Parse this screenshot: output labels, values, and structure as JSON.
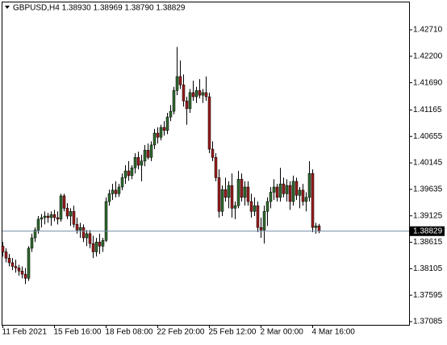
{
  "chart_data": {
    "type": "candlestick",
    "title": "GBPUSD,H4  1.38930 1.38969 1.38790 1.38829",
    "categories": [
      "11 Feb 2021",
      null,
      null,
      null,
      null,
      null,
      null,
      null,
      null,
      null,
      null,
      null,
      null,
      null,
      null,
      null,
      "15 Feb 16:00",
      null,
      null,
      null,
      null,
      null,
      null,
      null,
      null,
      null,
      null,
      null,
      null,
      null,
      null,
      null,
      "18 Feb 08:00",
      null,
      null,
      null,
      null,
      null,
      null,
      null,
      null,
      null,
      null,
      null,
      null,
      null,
      null,
      null,
      "22 Feb 20:00",
      null,
      null,
      null,
      null,
      null,
      null,
      null,
      null,
      null,
      null,
      null,
      null,
      null,
      null,
      null,
      "25 Feb 12:00",
      null,
      null,
      null,
      null,
      null,
      null,
      null,
      null,
      null,
      null,
      null,
      null,
      null,
      null,
      null,
      "2 Mar 00:00",
      null,
      null,
      null,
      null,
      null,
      null,
      null,
      null,
      null,
      null,
      null,
      null,
      null,
      null,
      null,
      "4 Mar 16:00",
      null,
      null
    ],
    "open": [
      1.3854,
      1.3843,
      1.3831,
      1.3822,
      1.3815,
      1.3812,
      1.3806,
      1.38,
      1.3792,
      1.385,
      1.387,
      1.3885,
      1.3906,
      1.3909,
      1.3912,
      1.3909,
      1.3915,
      1.3909,
      1.3906,
      1.3951,
      1.3927,
      1.3912,
      1.3921,
      1.3896,
      1.3885,
      1.389,
      1.387,
      1.3878,
      1.3859,
      1.3843,
      1.3862,
      1.3854,
      1.3865,
      1.394,
      1.3955,
      1.3962,
      1.3955,
      1.3968,
      1.3986,
      1.3999,
      1.399,
      1.4005,
      1.4025,
      1.401,
      1.4018,
      1.4039,
      1.4025,
      1.4049,
      1.4072,
      1.4064,
      1.4083,
      1.4077,
      1.4103,
      1.4114,
      1.4154,
      1.4181,
      1.4165,
      1.4134,
      1.4119,
      1.415,
      1.4142,
      1.4154,
      1.4145,
      1.415,
      1.4142,
      1.4041,
      1.4025,
      1.3986,
      1.3921,
      1.3963,
      1.3948,
      1.3971,
      1.3927,
      1.3932,
      1.3983,
      1.3948,
      1.3968,
      1.394,
      1.3921,
      1.3932,
      1.389,
      1.3885,
      1.3921,
      1.394,
      1.3958,
      1.3968,
      1.3948,
      1.3974,
      1.3955,
      1.3971,
      1.394,
      1.3979,
      1.3952,
      1.3962,
      1.394,
      1.3948,
      1.3994,
      1.389,
      1.3893
    ],
    "high": [
      1.3862,
      1.385,
      1.3839,
      1.3831,
      1.3828,
      1.3818,
      1.3815,
      1.3812,
      1.3854,
      1.3878,
      1.389,
      1.3912,
      1.3916,
      1.3921,
      1.3918,
      1.3921,
      1.3924,
      1.3921,
      1.3955,
      1.3955,
      1.3937,
      1.3927,
      1.3932,
      1.3909,
      1.3899,
      1.3896,
      1.3885,
      1.3885,
      1.3874,
      1.387,
      1.3878,
      1.387,
      1.3948,
      1.3963,
      1.3974,
      1.3979,
      1.3974,
      1.3994,
      1.401,
      1.4018,
      1.401,
      1.4033,
      1.4036,
      1.403,
      1.4049,
      1.4052,
      1.4056,
      1.408,
      1.4083,
      1.4088,
      1.4095,
      1.4111,
      1.4126,
      1.4161,
      1.4238,
      1.4212,
      1.4185,
      1.4142,
      1.4157,
      1.4173,
      1.4161,
      1.4176,
      1.4157,
      1.4181,
      1.415,
      1.4056,
      1.4033,
      1.4002,
      1.3971,
      1.3986,
      1.3979,
      1.3994,
      1.394,
      1.3999,
      1.3994,
      1.3979,
      1.3979,
      1.3955,
      1.3948,
      1.394,
      1.3909,
      1.3932,
      1.3948,
      1.3968,
      1.3983,
      1.3974,
      1.4005,
      1.3986,
      1.3983,
      1.3979,
      1.399,
      1.3986,
      1.3968,
      1.3974,
      1.3958,
      1.4018,
      1.4002,
      1.3899,
      1.38969
    ],
    "low": [
      1.3834,
      1.3823,
      1.3815,
      1.3808,
      1.3803,
      1.3797,
      1.3792,
      1.3781,
      1.3787,
      1.3843,
      1.3862,
      1.3878,
      1.389,
      1.3896,
      1.3899,
      1.3893,
      1.3902,
      1.3896,
      1.3901,
      1.3921,
      1.3906,
      1.3893,
      1.389,
      1.3878,
      1.387,
      1.3862,
      1.3854,
      1.385,
      1.3831,
      1.3834,
      1.3839,
      1.3843,
      1.3862,
      1.3932,
      1.3943,
      1.3948,
      1.3949,
      1.3962,
      1.3974,
      1.398,
      1.3983,
      1.3994,
      1.4002,
      1.3979,
      1.4008,
      1.4021,
      1.4018,
      1.4041,
      1.4052,
      1.4058,
      1.4067,
      1.407,
      1.4095,
      1.4108,
      1.4145,
      1.4157,
      1.4123,
      1.4088,
      1.4111,
      1.4134,
      1.413,
      1.4139,
      1.413,
      1.4134,
      1.4033,
      1.4018,
      1.3979,
      1.3909,
      1.3912,
      1.394,
      1.3927,
      1.3909,
      1.3906,
      1.3927,
      1.394,
      1.3932,
      1.3932,
      1.3909,
      1.3912,
      1.3881,
      1.387,
      1.3859,
      1.3893,
      1.3927,
      1.3943,
      1.394,
      1.394,
      1.3948,
      1.394,
      1.3924,
      1.3932,
      1.3943,
      1.3927,
      1.3932,
      1.3921,
      1.394,
      1.3881,
      1.3878,
      1.3879
    ],
    "close": [
      1.3843,
      1.3831,
      1.3822,
      1.3815,
      1.3812,
      1.3806,
      1.38,
      1.3792,
      1.385,
      1.387,
      1.3885,
      1.3906,
      1.3909,
      1.3912,
      1.3909,
      1.3915,
      1.3909,
      1.3906,
      1.3951,
      1.3927,
      1.3912,
      1.3921,
      1.3896,
      1.3885,
      1.389,
      1.387,
      1.3878,
      1.3859,
      1.3843,
      1.3862,
      1.3854,
      1.3865,
      1.394,
      1.3955,
      1.3962,
      1.3955,
      1.3968,
      1.3986,
      1.3999,
      1.399,
      1.4005,
      1.4025,
      1.401,
      1.4018,
      1.4039,
      1.4025,
      1.4049,
      1.4072,
      1.4064,
      1.4083,
      1.4077,
      1.4103,
      1.4114,
      1.4154,
      1.4181,
      1.4165,
      1.4134,
      1.4119,
      1.415,
      1.4142,
      1.4154,
      1.4145,
      1.415,
      1.4142,
      1.4041,
      1.4025,
      1.3986,
      1.3921,
      1.3963,
      1.3948,
      1.3971,
      1.3927,
      1.3932,
      1.3983,
      1.3948,
      1.3968,
      1.394,
      1.3921,
      1.3932,
      1.389,
      1.3885,
      1.3921,
      1.394,
      1.3958,
      1.3968,
      1.3948,
      1.3974,
      1.3955,
      1.3971,
      1.394,
      1.3979,
      1.3952,
      1.3962,
      1.394,
      1.3948,
      1.3994,
      1.389,
      1.3893,
      1.38829
    ],
    "up_color": "#2f6b2f",
    "down_color": "#9a1c1c",
    "ylim": [
      1.37023,
      1.43254
    ],
    "yticks": [
      {
        "value": 1.4271,
        "label": "1.42710"
      },
      {
        "value": 1.422,
        "label": "1.42200"
      },
      {
        "value": 1.4169,
        "label": "1.41690"
      },
      {
        "value": 1.41165,
        "label": "1.41165"
      },
      {
        "value": 1.40655,
        "label": "1.40655"
      },
      {
        "value": 1.40145,
        "label": "1.40145"
      },
      {
        "value": 1.39635,
        "label": "1.39635"
      },
      {
        "value": 1.39125,
        "label": "1.39125"
      },
      {
        "value": 1.38615,
        "label": "1.38615"
      },
      {
        "value": 1.38105,
        "label": "1.38105"
      },
      {
        "value": 1.37595,
        "label": "1.37595"
      },
      {
        "value": 1.37085,
        "label": "1.37085"
      }
    ],
    "current_price": {
      "value": 1.38829,
      "label": "1.38829"
    },
    "grid": false
  }
}
